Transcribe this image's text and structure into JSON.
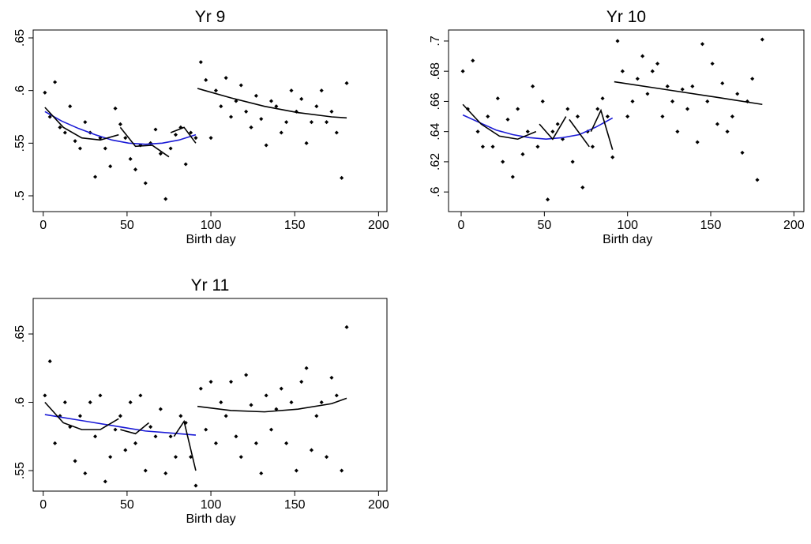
{
  "chart_data": [
    {
      "type": "scatter",
      "title": "Yr 9",
      "xlabel": "Birth day",
      "color": "#000000",
      "x": [
        1,
        4,
        7,
        10,
        13,
        16,
        19,
        22,
        25,
        28,
        31,
        34,
        37,
        40,
        43,
        46,
        49,
        52,
        55,
        58,
        61,
        64,
        67,
        70,
        73,
        76,
        79,
        82,
        85,
        88,
        91,
        94,
        97,
        100,
        103,
        106,
        109,
        112,
        115,
        118,
        121,
        124,
        127,
        130,
        133,
        136,
        139,
        142,
        145,
        148,
        151,
        154,
        157,
        160,
        163,
        166,
        169,
        172,
        175,
        178,
        181
      ],
      "values": [
        0.598,
        0.575,
        0.608,
        0.565,
        0.56,
        0.585,
        0.552,
        0.545,
        0.57,
        0.56,
        0.518,
        0.555,
        0.545,
        0.528,
        0.583,
        0.568,
        0.555,
        0.535,
        0.525,
        0.548,
        0.512,
        0.55,
        0.563,
        0.54,
        0.497,
        0.545,
        0.558,
        0.565,
        0.53,
        0.56,
        0.555,
        0.627,
        0.61,
        0.555,
        0.6,
        0.585,
        0.612,
        0.575,
        0.59,
        0.605,
        0.58,
        0.565,
        0.595,
        0.573,
        0.548,
        0.59,
        0.585,
        0.56,
        0.57,
        0.6,
        0.58,
        0.592,
        0.55,
        0.57,
        0.585,
        0.6,
        0.57,
        0.58,
        0.56,
        0.517,
        0.607
      ],
      "lines": [
        {
          "color": "#1a1ad6",
          "x": [
            1,
            11,
            21,
            31,
            41,
            51,
            61,
            71,
            81,
            91
          ],
          "values": [
            0.58,
            0.571,
            0.564,
            0.558,
            0.553,
            0.55,
            0.549,
            0.55,
            0.553,
            0.558
          ]
        },
        {
          "color": "#000000",
          "x": [
            92,
            112,
            132,
            152,
            172,
            181
          ],
          "values": [
            0.602,
            0.593,
            0.585,
            0.579,
            0.575,
            0.574
          ]
        },
        {
          "color": "#000000",
          "x": [
            1,
            12,
            23,
            34,
            45
          ],
          "values": [
            0.584,
            0.565,
            0.555,
            0.553,
            0.558
          ]
        },
        {
          "color": "#000000",
          "x": [
            46,
            55,
            65,
            75
          ],
          "values": [
            0.565,
            0.547,
            0.548,
            0.537
          ]
        },
        {
          "color": "#000000",
          "x": [
            76,
            84,
            91
          ],
          "values": [
            0.56,
            0.565,
            0.55
          ]
        }
      ],
      "xlim": [
        -6,
        205
      ],
      "ylim": [
        0.485,
        0.6575
      ],
      "xticks": [
        0,
        50,
        100,
        150,
        200
      ],
      "yticks": [
        {
          "value": 0.5,
          "label": ".5"
        },
        {
          "value": 0.55,
          "label": ".55"
        },
        {
          "value": 0.6,
          "label": ".6"
        },
        {
          "value": 0.65,
          "label": ".65"
        }
      ]
    },
    {
      "type": "scatter",
      "title": "Yr 10",
      "xlabel": "Birth day",
      "color": "#000000",
      "x": [
        1,
        4,
        7,
        10,
        13,
        16,
        19,
        22,
        25,
        28,
        31,
        34,
        37,
        40,
        43,
        46,
        49,
        52,
        55,
        58,
        61,
        64,
        67,
        70,
        73,
        76,
        79,
        82,
        85,
        88,
        91,
        94,
        97,
        100,
        103,
        106,
        109,
        112,
        115,
        118,
        121,
        124,
        127,
        130,
        133,
        136,
        139,
        142,
        145,
        148,
        151,
        154,
        157,
        160,
        163,
        166,
        169,
        172,
        175,
        178,
        181
      ],
      "values": [
        0.68,
        0.655,
        0.687,
        0.64,
        0.63,
        0.65,
        0.63,
        0.662,
        0.62,
        0.648,
        0.61,
        0.655,
        0.625,
        0.64,
        0.67,
        0.63,
        0.66,
        0.595,
        0.64,
        0.645,
        0.635,
        0.655,
        0.62,
        0.65,
        0.603,
        0.64,
        0.63,
        0.655,
        0.662,
        0.65,
        0.623,
        0.7,
        0.68,
        0.65,
        0.66,
        0.675,
        0.69,
        0.665,
        0.68,
        0.685,
        0.65,
        0.67,
        0.66,
        0.64,
        0.668,
        0.655,
        0.67,
        0.633,
        0.698,
        0.66,
        0.685,
        0.645,
        0.672,
        0.64,
        0.65,
        0.665,
        0.626,
        0.66,
        0.675,
        0.608,
        0.701
      ],
      "lines": [
        {
          "color": "#1a1ad6",
          "x": [
            1,
            11,
            21,
            31,
            41,
            51,
            61,
            71,
            81,
            91
          ],
          "values": [
            0.651,
            0.646,
            0.641,
            0.638,
            0.636,
            0.635,
            0.636,
            0.638,
            0.643,
            0.649
          ]
        },
        {
          "color": "#000000",
          "x": [
            92,
            122,
            152,
            181
          ],
          "values": [
            0.673,
            0.668,
            0.663,
            0.658
          ]
        },
        {
          "color": "#000000",
          "x": [
            1,
            12,
            23,
            34,
            45
          ],
          "values": [
            0.658,
            0.645,
            0.637,
            0.635,
            0.64
          ]
        },
        {
          "color": "#000000",
          "x": [
            47,
            55,
            63
          ],
          "values": [
            0.645,
            0.635,
            0.65
          ]
        },
        {
          "color": "#000000",
          "x": [
            65,
            77
          ],
          "values": [
            0.648,
            0.63
          ]
        },
        {
          "color": "#000000",
          "x": [
            78,
            84,
            91
          ],
          "values": [
            0.64,
            0.654,
            0.628
          ]
        }
      ],
      "xlim": [
        -7.6,
        206
      ],
      "ylim": [
        0.587,
        0.7073
      ],
      "xticks": [
        0,
        50,
        100,
        150,
        200
      ],
      "yticks": [
        {
          "value": 0.6,
          "label": ".6"
        },
        {
          "value": 0.62,
          "label": ".62"
        },
        {
          "value": 0.64,
          "label": ".64"
        },
        {
          "value": 0.66,
          "label": ".66"
        },
        {
          "value": 0.68,
          "label": ".68"
        },
        {
          "value": 0.7,
          "label": ".7"
        }
      ]
    },
    {
      "type": "scatter",
      "title": "Yr 11",
      "xlabel": "Birth day",
      "color": "#000000",
      "x": [
        1,
        4,
        7,
        10,
        13,
        16,
        19,
        22,
        25,
        28,
        31,
        34,
        37,
        40,
        43,
        46,
        49,
        52,
        55,
        58,
        61,
        64,
        67,
        70,
        73,
        76,
        79,
        82,
        85,
        88,
        91,
        94,
        97,
        100,
        103,
        106,
        109,
        112,
        115,
        118,
        121,
        124,
        127,
        130,
        133,
        136,
        139,
        142,
        145,
        148,
        151,
        154,
        157,
        160,
        163,
        166,
        169,
        172,
        175,
        178,
        181
      ],
      "values": [
        0.605,
        0.63,
        0.57,
        0.59,
        0.6,
        0.582,
        0.557,
        0.59,
        0.548,
        0.6,
        0.575,
        0.605,
        0.542,
        0.56,
        0.58,
        0.59,
        0.565,
        0.6,
        0.57,
        0.605,
        0.55,
        0.582,
        0.575,
        0.595,
        0.548,
        0.575,
        0.56,
        0.59,
        0.585,
        0.56,
        0.539,
        0.61,
        0.58,
        0.615,
        0.57,
        0.6,
        0.59,
        0.615,
        0.575,
        0.56,
        0.62,
        0.598,
        0.57,
        0.548,
        0.605,
        0.58,
        0.595,
        0.61,
        0.57,
        0.6,
        0.55,
        0.615,
        0.625,
        0.565,
        0.59,
        0.6,
        0.56,
        0.618,
        0.605,
        0.55,
        0.655
      ],
      "lines": [
        {
          "color": "#1a1ad6",
          "x": [
            1,
            11,
            21,
            31,
            41,
            51,
            61,
            71,
            81,
            91
          ],
          "values": [
            0.591,
            0.589,
            0.587,
            0.585,
            0.583,
            0.581,
            0.579,
            0.578,
            0.577,
            0.576
          ]
        },
        {
          "color": "#000000",
          "x": [
            92,
            112,
            132,
            152,
            172,
            181
          ],
          "values": [
            0.597,
            0.594,
            0.593,
            0.595,
            0.599,
            0.603
          ]
        },
        {
          "color": "#000000",
          "x": [
            1,
            12,
            23,
            34,
            45
          ],
          "values": [
            0.6,
            0.585,
            0.58,
            0.58,
            0.588
          ]
        },
        {
          "color": "#000000",
          "x": [
            46,
            55,
            63
          ],
          "values": [
            0.58,
            0.577,
            0.585
          ]
        },
        {
          "color": "#000000",
          "x": [
            78,
            84,
            91
          ],
          "values": [
            0.575,
            0.586,
            0.55
          ]
        }
      ],
      "xlim": [
        -6,
        205
      ],
      "ylim": [
        0.535,
        0.676
      ],
      "xticks": [
        0,
        50,
        100,
        150,
        200
      ],
      "yticks": [
        {
          "value": 0.55,
          "label": ".55"
        },
        {
          "value": 0.6,
          "label": ".6"
        },
        {
          "value": 0.65,
          "label": ".65"
        }
      ]
    }
  ]
}
